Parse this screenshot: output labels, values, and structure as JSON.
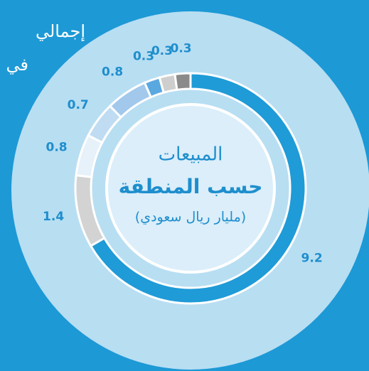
{
  "chart_data": {
    "type": "donut",
    "intro_lines": [
      "إجمالي",
      "في"
    ],
    "center_lines": [
      "المبيعات",
      "حسب المنطقة",
      "(مليار ريال سعودي)"
    ],
    "values": [
      9.2,
      1.4,
      0.8,
      0.7,
      0.8,
      0.3,
      0.3,
      0.3
    ],
    "colors": [
      "#1f9bd7",
      "#d3d3d3",
      "#e6f1fa",
      "#c0dcf2",
      "#a2c8ec",
      "#5aa8e0",
      "#cecece",
      "#8a8a8a"
    ]
  }
}
